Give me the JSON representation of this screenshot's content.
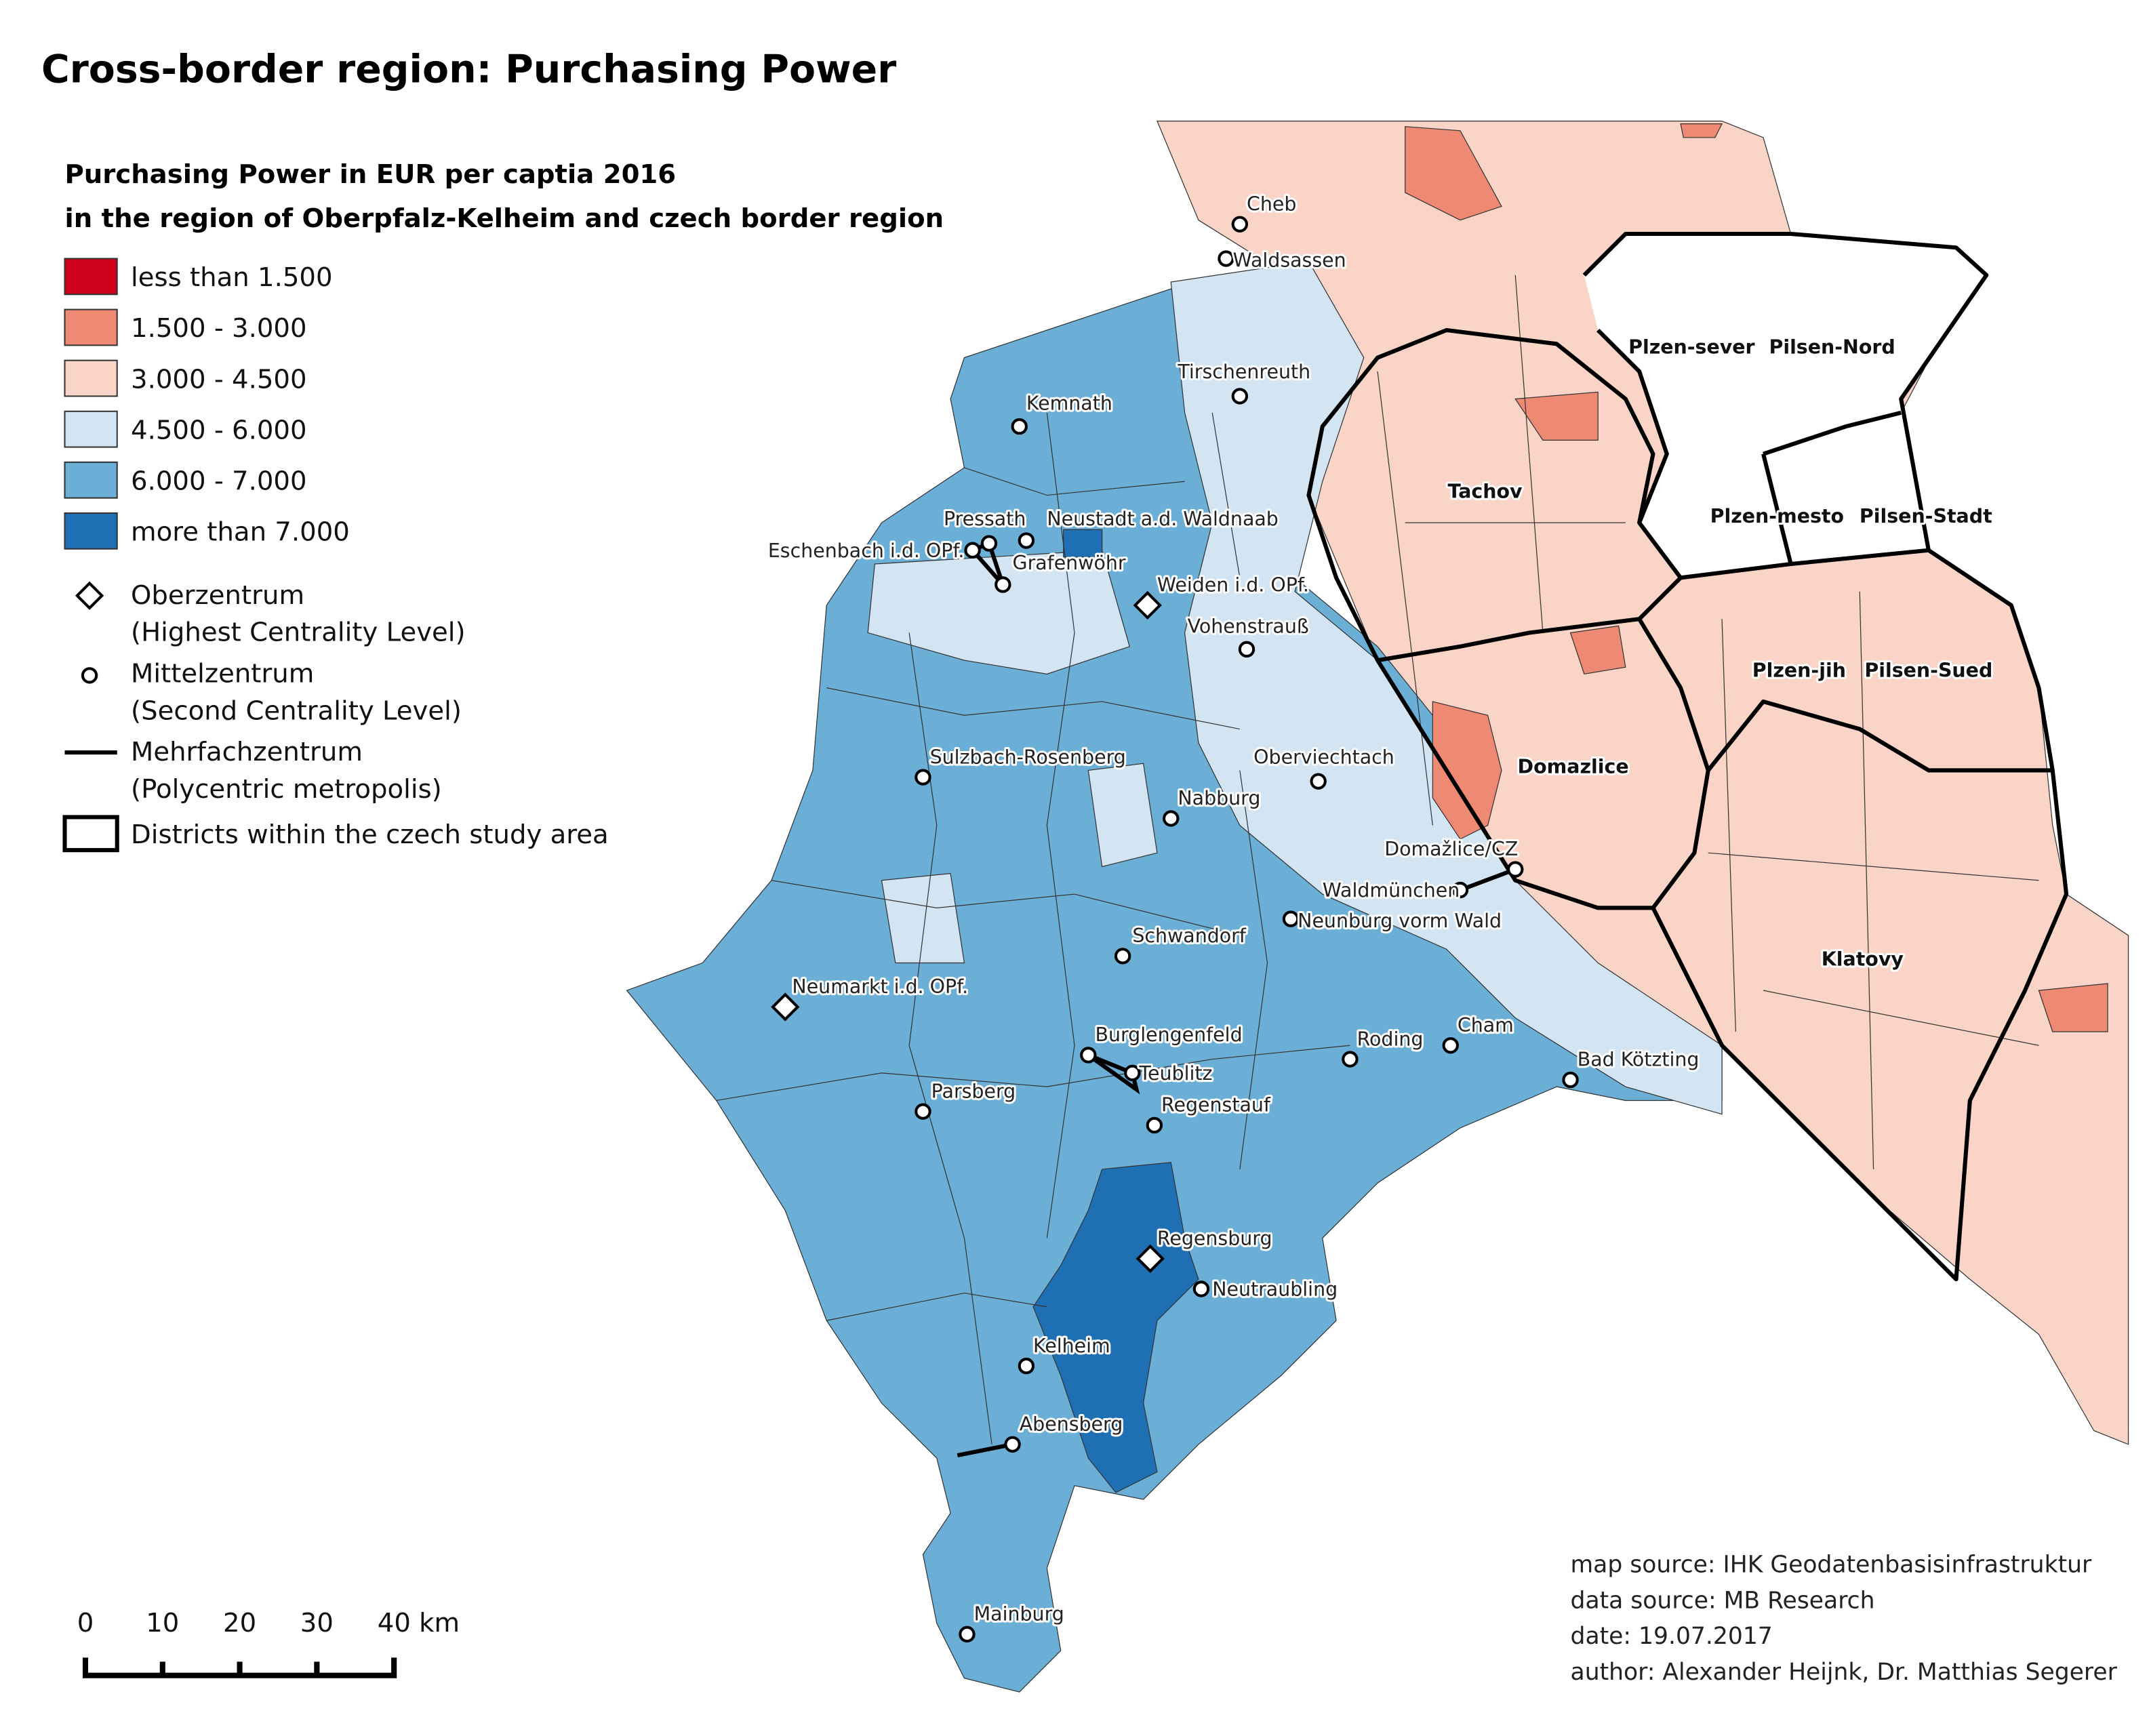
{
  "title": "Cross-border region: Purchasing Power",
  "legend": {
    "title": [
      "Purchasing Power in EUR per captia 2016",
      "in the region of Oberpfalz-Kelheim and czech border region"
    ],
    "classes": [
      {
        "label": "less than 1.500",
        "color": "#d0021b"
      },
      {
        "label": "1.500 - 3.000",
        "color": "#ee8a73"
      },
      {
        "label": "3.000 - 4.500",
        "color": "#f9d4c7"
      },
      {
        "label": "4.500 - 6.000",
        "color": "#d3e5f2"
      },
      {
        "label": "6.000 - 7.000",
        "color": "#6baed6"
      },
      {
        "label": "more than 7.000",
        "color": "#1f6fb5"
      }
    ],
    "symbols": [
      {
        "label": "Oberzentrum",
        "description": "(Highest Centrality Level)"
      },
      {
        "label": "Mittelzentrum",
        "description": "(Second Centrality Level)"
      },
      {
        "label": "Mehrfachzentrum",
        "description": "(Polycentric metropolis)"
      },
      {
        "label": "Districts within the czech study area"
      }
    ]
  },
  "cities": [
    "Cheb",
    "Waldsassen",
    "Tirschenreuth",
    "Kemnath",
    "Pressath",
    "Neustadt a.d. Waldnaab",
    "Eschenbach i.d. OPf.",
    "Grafenwöhr",
    "Weiden i.d. OPf.",
    "Vohenstrauß",
    "Sulzbach-Rosenberg",
    "Oberviechtach",
    "Nabburg",
    "Domažlice/CZ",
    "Waldmünchen",
    "Neunburg vorm Wald",
    "Schwandorf",
    "Neumarkt i.d. OPf.",
    "Burglengenfeld",
    "Teublitz",
    "Roding",
    "Cham",
    "Bad Kötzting",
    "Parsberg",
    "Regenstauf",
    "Regensburg",
    "Neutraubling",
    "Kelheim",
    "Abensberg",
    "Mainburg"
  ],
  "districts": [
    "Plzen-sever",
    "Pilsen-Nord",
    "Tachov",
    "Plzen-mesto",
    "Pilsen-Stadt",
    "Plzen-jih",
    "Pilsen-Sued",
    "Domazlice",
    "Klatovy"
  ],
  "scale_bar": [
    "0",
    "10",
    "20",
    "30",
    "40 km"
  ],
  "sources": [
    "map source: IHK Geodatenbasisinfrastruktur",
    "data source: MB Research",
    "date: 19.07.2017",
    "author: Alexander Heijnk, Dr. Matthias Segerer"
  ]
}
